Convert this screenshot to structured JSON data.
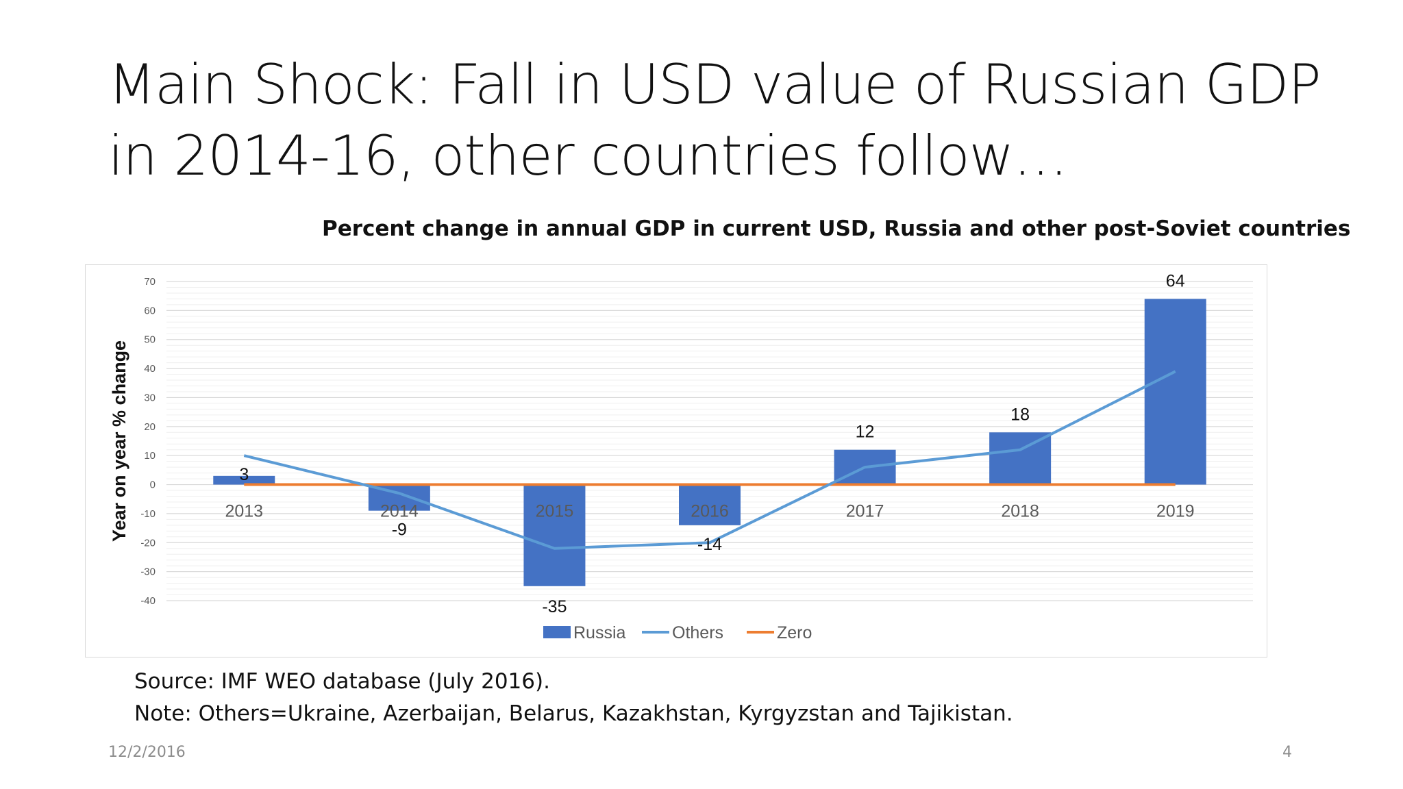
{
  "slide": {
    "title_line1": "Main Shock: Fall in USD value of Russian GDP",
    "title_line2": "in 2014-16, other countries follow…",
    "source": "Source: IMF WEO database (July 2016).",
    "note": "Note: Others=Ukraine, Azerbaijan, Belarus, Kazakhstan, Kyrgyzstan and Tajikistan.",
    "date": "12/2/2016",
    "page_number": "4"
  },
  "chart_data": {
    "type": "bar",
    "title": "Percent change in annual GDP in current USD, Russia and other post-Soviet countries",
    "xlabel": "",
    "ylabel": "Year on year % change",
    "categories": [
      "2013",
      "2014",
      "2015",
      "2016",
      "2017",
      "2018",
      "2019"
    ],
    "ylim": [
      -40,
      70
    ],
    "yticks": [
      70,
      60,
      50,
      40,
      30,
      20,
      10,
      0,
      -10,
      -20,
      -30,
      -40
    ],
    "grid": true,
    "legend_position": "bottom",
    "series": [
      {
        "name": "Russia",
        "kind": "bar",
        "color": "#4472c4",
        "values": [
          3,
          -9,
          -35,
          -14,
          12,
          18,
          64
        ],
        "labels": [
          "3",
          "-9",
          "-35",
          "-14",
          "12",
          "18",
          "64"
        ]
      },
      {
        "name": "Others",
        "kind": "line",
        "color": "#5b9bd5",
        "values": [
          10,
          -3,
          -22,
          -20,
          6,
          12,
          39
        ]
      },
      {
        "name": "Zero",
        "kind": "line",
        "color": "#ed7d31",
        "values": [
          0,
          0,
          0,
          0,
          0,
          0,
          0
        ]
      }
    ]
  }
}
